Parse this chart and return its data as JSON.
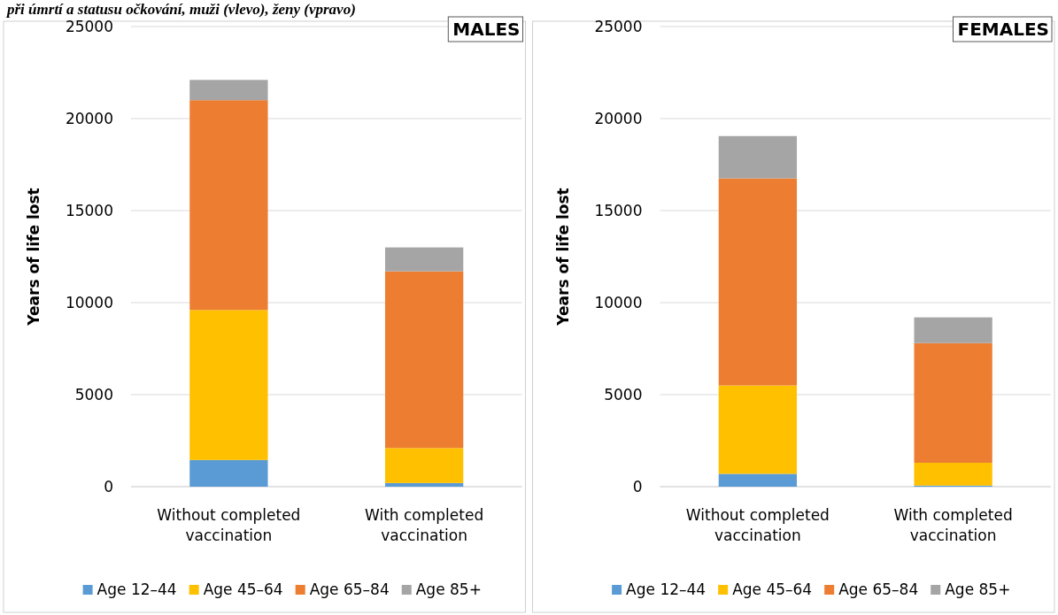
{
  "chart_data": [
    {
      "type": "bar",
      "title": "MALES",
      "subtitle": "při úmrtí a statusu očkování, muži (vlevo), ženy (vpravo)",
      "ylabel": "Years of life lost",
      "categories": [
        "Without completed vaccination",
        "With completed vaccination"
      ],
      "stacked": true,
      "series": [
        {
          "name": "Age 12–44",
          "color": "#5b9bd5",
          "values": [
            1450,
            200
          ]
        },
        {
          "name": "Age 45–64",
          "color": "#ffc000",
          "values": [
            8150,
            1900
          ]
        },
        {
          "name": "Age 65–84",
          "color": "#ed7d31",
          "values": [
            11400,
            9600
          ]
        },
        {
          "name": "Age 85+",
          "color": "#a5a5a5",
          "values": [
            1100,
            1300
          ]
        }
      ],
      "ylim": [
        0,
        25000
      ],
      "yticks": [
        0,
        5000,
        10000,
        15000,
        20000,
        25000
      ],
      "grid": "y",
      "legend": "bottom"
    },
    {
      "type": "bar",
      "title": "FEMALES",
      "ylabel": "Years of life lost",
      "categories": [
        "Without completed vaccination",
        "With completed vaccination"
      ],
      "stacked": true,
      "series": [
        {
          "name": "Age 12–44",
          "color": "#5b9bd5",
          "values": [
            700,
            60
          ]
        },
        {
          "name": "Age 45–64",
          "color": "#ffc000",
          "values": [
            4800,
            1240
          ]
        },
        {
          "name": "Age 65–84",
          "color": "#ed7d31",
          "values": [
            11250,
            6500
          ]
        },
        {
          "name": "Age 85+",
          "color": "#a5a5a5",
          "values": [
            2300,
            1400
          ]
        }
      ],
      "ylim": [
        0,
        25000
      ],
      "yticks": [
        0,
        5000,
        10000,
        15000,
        20000,
        25000
      ],
      "grid": "y",
      "legend": "bottom"
    }
  ]
}
